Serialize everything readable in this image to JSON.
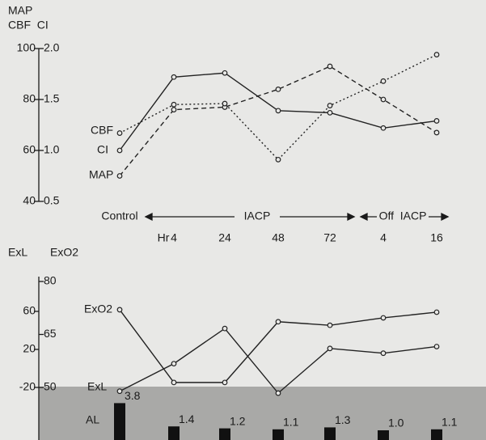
{
  "chart_data": [
    {
      "type": "line",
      "ylabel": "MAP",
      "y2label": "CBF  CI",
      "categories": [
        "Control",
        "4",
        "24",
        "48",
        "72",
        "4",
        "16"
      ],
      "x_unit_label": "Hr",
      "phases": [
        "IACP",
        "Off  IACP"
      ],
      "ylim": [
        40,
        100
      ],
      "yticks": [
        40,
        60,
        80,
        100
      ],
      "y2lim": [
        0.5,
        2.0
      ],
      "y2ticks": [
        0.5,
        {
          "value": 1,
          "label": "1.0"
        },
        1.5,
        {
          "value": 2,
          "label": "2.0"
        }
      ],
      "series": [
        {
          "name": "MAP",
          "color": "#222",
          "dash": "6 4",
          "axis": "y",
          "values": [
            50,
            76,
            77,
            84,
            93,
            80,
            67
          ]
        },
        {
          "name": "CBF",
          "color": "#222",
          "dash": "2 3",
          "axis": "y2",
          "values": [
            1.17,
            1.45,
            1.46,
            0.91,
            1.44,
            1.68,
            1.94
          ]
        },
        {
          "name": "CI",
          "color": "#222",
          "dash": "none",
          "axis": "y2",
          "values": [
            1.0,
            1.72,
            1.76,
            1.39,
            1.37,
            1.22,
            1.29
          ]
        }
      ]
    },
    {
      "type": "line",
      "ylabel": "ExL",
      "y2label": "ExO2",
      "ylim": [
        -20,
        60
      ],
      "yticks": [
        60,
        20,
        -20
      ],
      "y2lim": [
        50,
        80
      ],
      "y2ticks": [
        50,
        65,
        80
      ],
      "series": [
        {
          "name": "ExO2",
          "color": "#222",
          "dash": "none",
          "axis": "y2",
          "values": [
            72.0,
            51.4,
            51.4,
            68.6,
            67.6,
            69.7,
            71.3
          ]
        },
        {
          "name": "ExL",
          "color": "#222",
          "dash": "none",
          "axis": "y",
          "values": [
            -24,
            5,
            42,
            -26,
            21,
            16,
            23
          ]
        }
      ],
      "bars": {
        "name": "AL",
        "color": "#111",
        "values": [
          3.8,
          1.4,
          1.2,
          1.1,
          1.3,
          1.0,
          1.1
        ],
        "value_labels": [
          "3.8",
          "1.4",
          "1.2",
          "1.1",
          "1.3",
          "1.0",
          "1.1"
        ]
      }
    }
  ]
}
